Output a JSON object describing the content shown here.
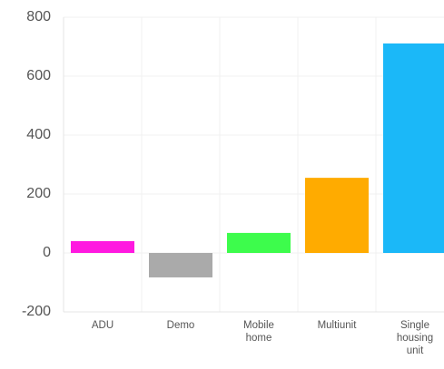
{
  "chart_data": {
    "type": "bar",
    "categories": [
      "ADU",
      "Demo",
      "Mobile home",
      "Multiunit",
      "Single housing unit"
    ],
    "values": [
      40,
      -83,
      68,
      255,
      711
    ],
    "colors": [
      "#ff19e0",
      "#aaaaaa",
      "#3dfc4c",
      "#ffab00",
      "#1bb8f8"
    ],
    "ylim": [
      -200,
      800
    ],
    "yticks": [
      -200,
      0,
      200,
      400,
      600,
      800
    ],
    "grid": true
  }
}
